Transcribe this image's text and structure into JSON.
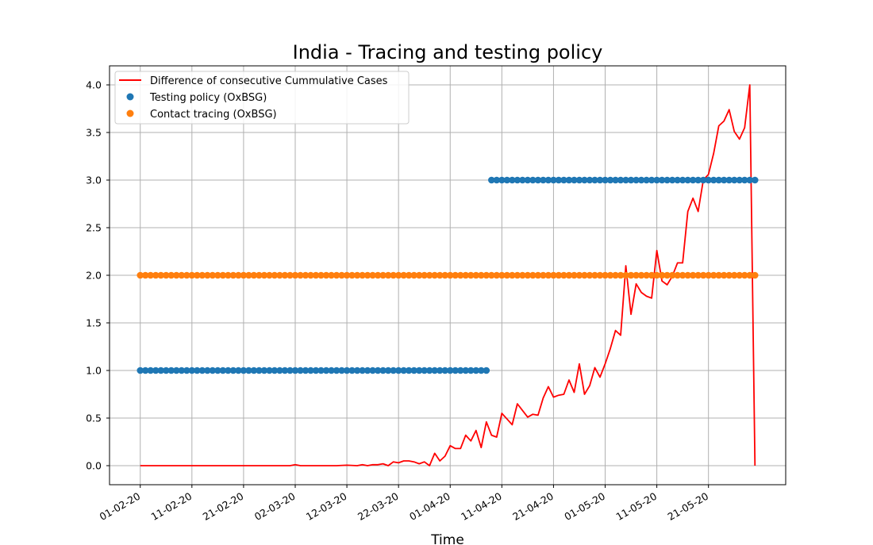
{
  "chart_data": {
    "type": "line",
    "title": "India - Tracing and testing policy",
    "xlabel": "Time",
    "ylabel": "",
    "x_start": "2020-02-01",
    "x_end": "2020-05-30",
    "x_tick_labels": [
      "01-02-20",
      "11-02-20",
      "21-02-20",
      "02-03-20",
      "12-03-20",
      "22-03-20",
      "01-04-20",
      "11-04-20",
      "21-04-20",
      "01-05-20",
      "11-05-20",
      "21-05-20"
    ],
    "x_tick_dates": [
      "2020-02-01",
      "2020-02-11",
      "2020-02-21",
      "2020-03-02",
      "2020-03-12",
      "2020-03-22",
      "2020-04-01",
      "2020-04-11",
      "2020-04-21",
      "2020-05-01",
      "2020-05-11",
      "2020-05-21"
    ],
    "ylim": [
      -0.2,
      4.2
    ],
    "y_ticks": [
      "0.0",
      "0.5",
      "1.0",
      "1.5",
      "2.0",
      "2.5",
      "3.0",
      "3.5",
      "4.0"
    ],
    "grid": true,
    "legend_position": "top-left",
    "series": [
      {
        "name": "Difference of consecutive Cummulative Cases",
        "style": "line",
        "color": "#ff0000",
        "points": [
          [
            "2020-02-01",
            0.0
          ],
          [
            "2020-02-11",
            0.0
          ],
          [
            "2020-02-21",
            0.0
          ],
          [
            "2020-03-01",
            0.0
          ],
          [
            "2020-03-02",
            0.01
          ],
          [
            "2020-03-03",
            0.0
          ],
          [
            "2020-03-06",
            0.0
          ],
          [
            "2020-03-10",
            0.0
          ],
          [
            "2020-03-12",
            0.005
          ],
          [
            "2020-03-14",
            0.0
          ],
          [
            "2020-03-15",
            0.01
          ],
          [
            "2020-03-16",
            0.0
          ],
          [
            "2020-03-17",
            0.01
          ],
          [
            "2020-03-18",
            0.01
          ],
          [
            "2020-03-19",
            0.02
          ],
          [
            "2020-03-20",
            0.0
          ],
          [
            "2020-03-21",
            0.04
          ],
          [
            "2020-03-22",
            0.03
          ],
          [
            "2020-03-23",
            0.05
          ],
          [
            "2020-03-24",
            0.05
          ],
          [
            "2020-03-25",
            0.04
          ],
          [
            "2020-03-26",
            0.02
          ],
          [
            "2020-03-27",
            0.04
          ],
          [
            "2020-03-28",
            0.0
          ],
          [
            "2020-03-29",
            0.13
          ],
          [
            "2020-03-30",
            0.05
          ],
          [
            "2020-03-31",
            0.1
          ],
          [
            "2020-04-01",
            0.21
          ],
          [
            "2020-04-02",
            0.18
          ],
          [
            "2020-04-03",
            0.18
          ],
          [
            "2020-04-04",
            0.32
          ],
          [
            "2020-04-05",
            0.26
          ],
          [
            "2020-04-06",
            0.37
          ],
          [
            "2020-04-07",
            0.19
          ],
          [
            "2020-04-08",
            0.46
          ],
          [
            "2020-04-09",
            0.32
          ],
          [
            "2020-04-10",
            0.3
          ],
          [
            "2020-04-11",
            0.55
          ],
          [
            "2020-04-12",
            0.49
          ],
          [
            "2020-04-13",
            0.43
          ],
          [
            "2020-04-14",
            0.65
          ],
          [
            "2020-04-15",
            0.58
          ],
          [
            "2020-04-16",
            0.51
          ],
          [
            "2020-04-17",
            0.54
          ],
          [
            "2020-04-18",
            0.53
          ],
          [
            "2020-04-19",
            0.71
          ],
          [
            "2020-04-20",
            0.83
          ],
          [
            "2020-04-21",
            0.72
          ],
          [
            "2020-04-22",
            0.74
          ],
          [
            "2020-04-23",
            0.75
          ],
          [
            "2020-04-24",
            0.9
          ],
          [
            "2020-04-25",
            0.77
          ],
          [
            "2020-04-26",
            1.07
          ],
          [
            "2020-04-27",
            0.75
          ],
          [
            "2020-04-28",
            0.84
          ],
          [
            "2020-04-29",
            1.03
          ],
          [
            "2020-04-30",
            0.93
          ],
          [
            "2020-05-01",
            1.07
          ],
          [
            "2020-05-02",
            1.23
          ],
          [
            "2020-05-03",
            1.42
          ],
          [
            "2020-05-04",
            1.37
          ],
          [
            "2020-05-05",
            2.1
          ],
          [
            "2020-05-06",
            1.59
          ],
          [
            "2020-05-07",
            1.91
          ],
          [
            "2020-05-08",
            1.82
          ],
          [
            "2020-05-09",
            1.78
          ],
          [
            "2020-05-10",
            1.76
          ],
          [
            "2020-05-11",
            2.26
          ],
          [
            "2020-05-12",
            1.94
          ],
          [
            "2020-05-13",
            1.9
          ],
          [
            "2020-05-14",
            1.99
          ],
          [
            "2020-05-15",
            2.13
          ],
          [
            "2020-05-16",
            2.13
          ],
          [
            "2020-05-17",
            2.67
          ],
          [
            "2020-05-18",
            2.81
          ],
          [
            "2020-05-19",
            2.67
          ],
          [
            "2020-05-20",
            3.0
          ],
          [
            "2020-05-21",
            3.06
          ],
          [
            "2020-05-22",
            3.28
          ],
          [
            "2020-05-23",
            3.57
          ],
          [
            "2020-05-24",
            3.62
          ],
          [
            "2020-05-25",
            3.74
          ],
          [
            "2020-05-26",
            3.51
          ],
          [
            "2020-05-27",
            3.43
          ],
          [
            "2020-05-28",
            3.55
          ],
          [
            "2020-05-29",
            4.0
          ],
          [
            "2020-05-30",
            0.0
          ]
        ]
      },
      {
        "name": "Testing policy (OxBSG)",
        "style": "markers",
        "color": "#1f77b4",
        "segments": [
          {
            "start": "2020-02-01",
            "end": "2020-04-08",
            "value": 1.0
          },
          {
            "start": "2020-04-09",
            "end": "2020-05-30",
            "value": 3.0
          }
        ]
      },
      {
        "name": "Contact tracing (OxBSG)",
        "style": "markers",
        "color": "#ff7f0e",
        "segments": [
          {
            "start": "2020-02-01",
            "end": "2020-05-30",
            "value": 2.0
          }
        ]
      }
    ]
  }
}
